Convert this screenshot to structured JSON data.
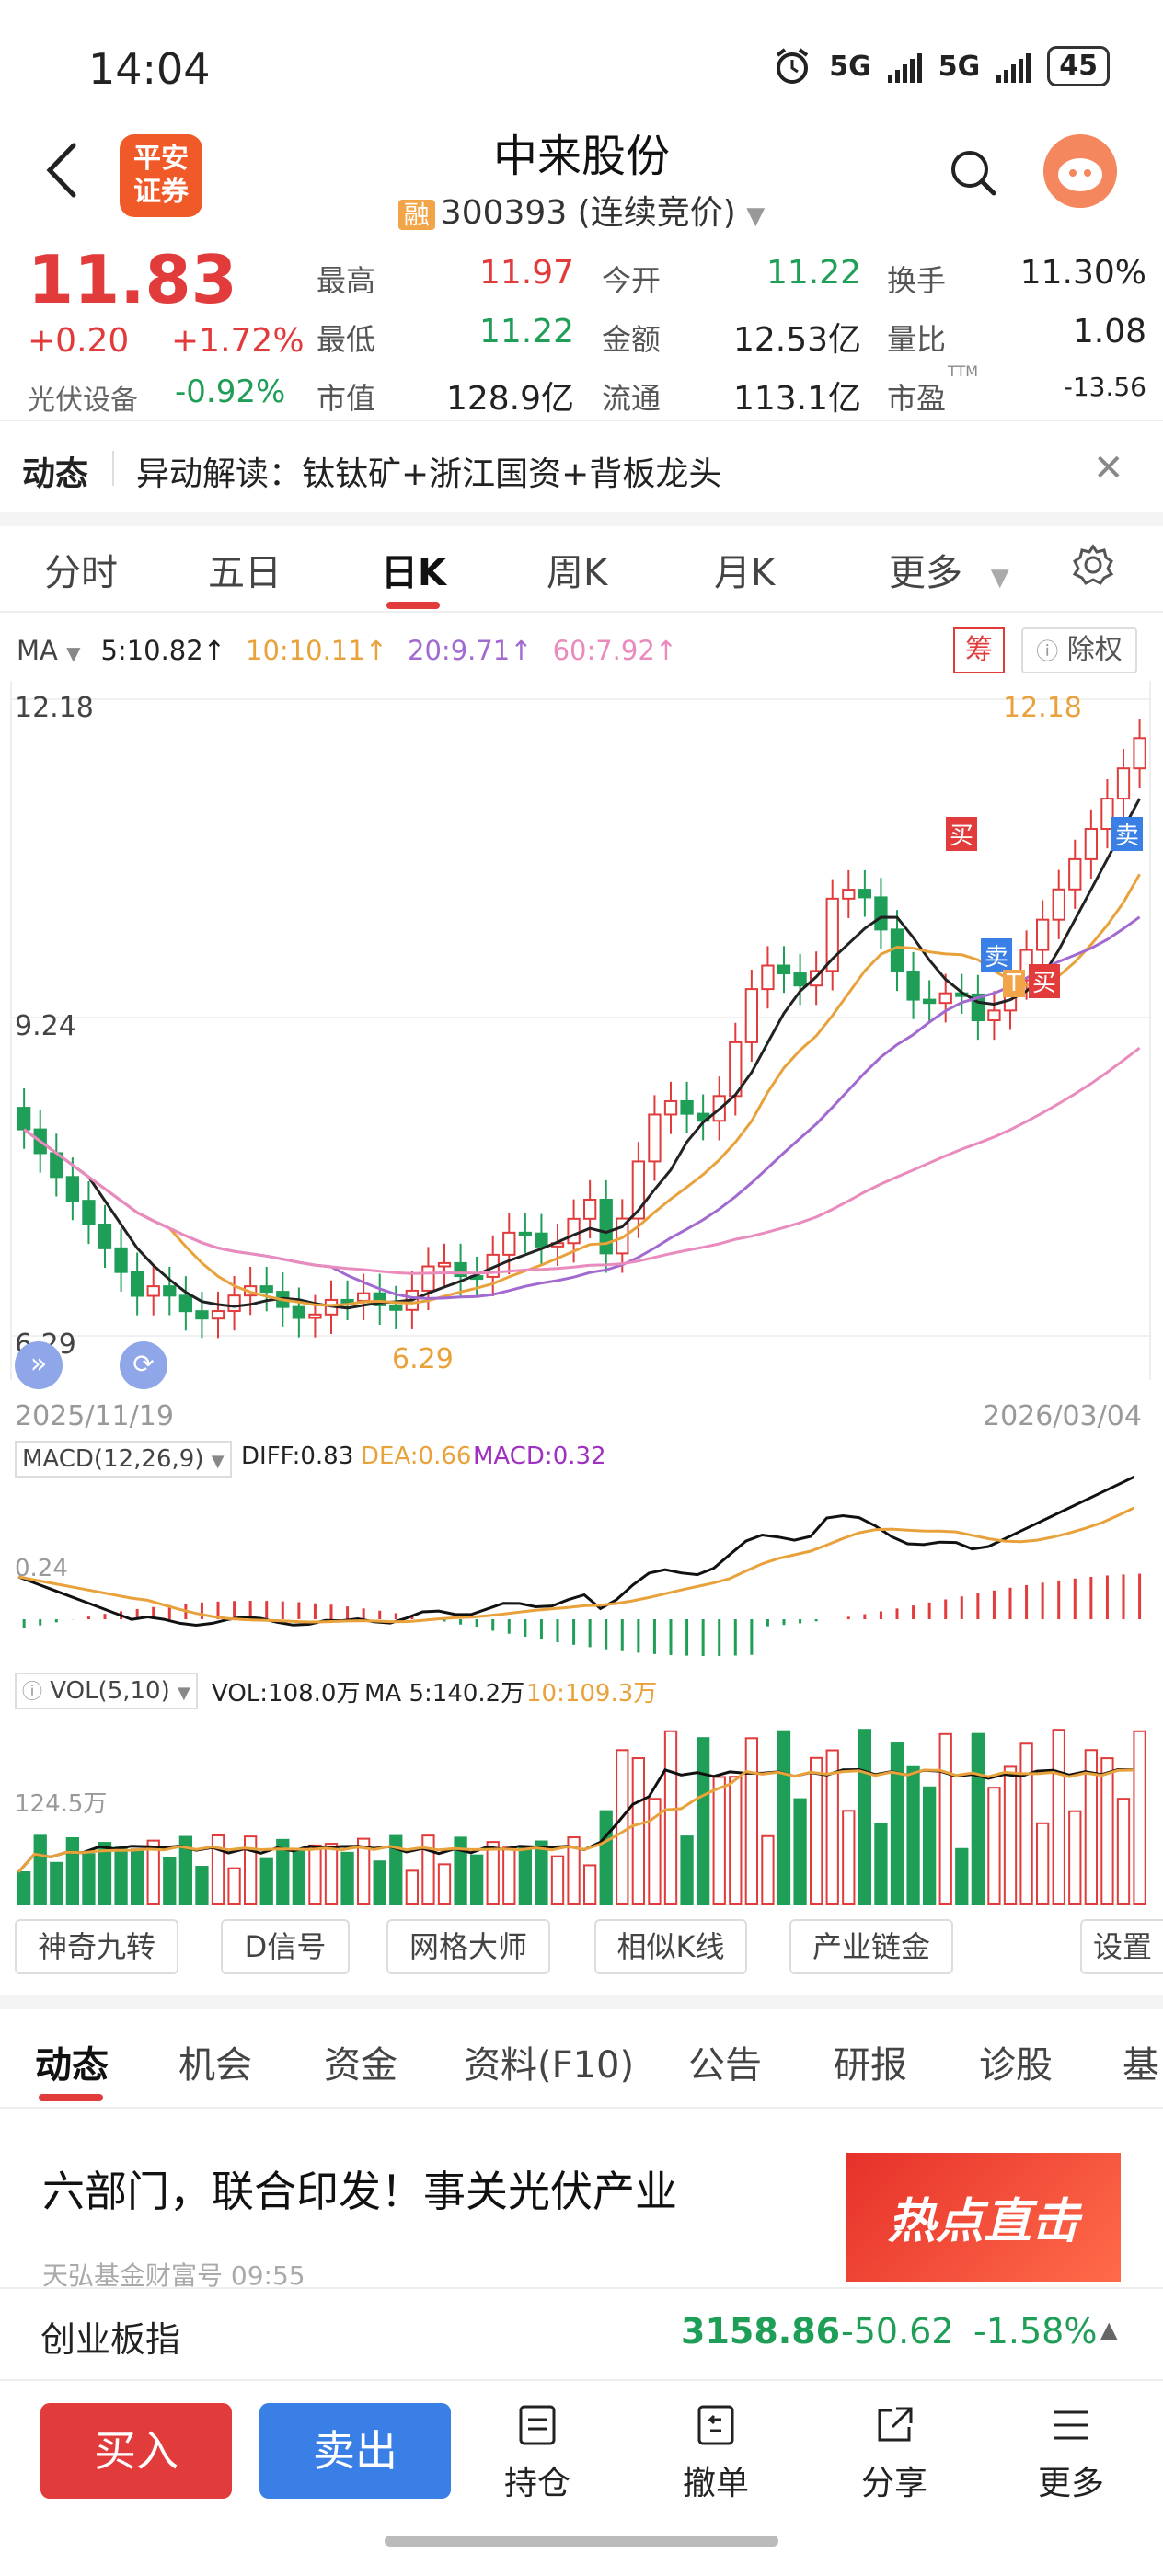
{
  "status_bar": {
    "time": "14:04",
    "network1": "5G",
    "network2": "5G",
    "battery": "45"
  },
  "header": {
    "logo_line1": "平安",
    "logo_line2": "证券",
    "stock_name": "中来股份",
    "margin_tag": "融",
    "code_status": "300393 (连续竞价)"
  },
  "quote": {
    "price": "11.83",
    "change": "+0.20",
    "change_pct": "+1.72%",
    "sector": "光伏设备",
    "sector_chg": "-0.92%",
    "fields": [
      {
        "label": "最高",
        "value": "11.97",
        "color": "#e13b3b"
      },
      {
        "label": "今开",
        "value": "11.22",
        "color": "#1f9e57"
      },
      {
        "label": "换手",
        "value": "11.30%",
        "color": "#222222"
      },
      {
        "label": "最低",
        "value": "11.22",
        "color": "#1f9e57"
      },
      {
        "label": "金额",
        "value": "12.53亿",
        "color": "#222222"
      },
      {
        "label": "量比",
        "value": "1.08",
        "color": "#222222"
      },
      {
        "label": "市值",
        "value": "128.9亿",
        "color": "#222222"
      },
      {
        "label": "流通",
        "value": "113.1亿",
        "color": "#222222"
      },
      {
        "label": "市盈",
        "value": "-13.56",
        "color": "#222222"
      }
    ],
    "pe_sup": "TTM"
  },
  "news_strip": {
    "tag": "动态",
    "text": "异动解读：钛钛矿+浙江国资+背板龙头"
  },
  "period_tabs": [
    "分时",
    "五日",
    "日K",
    "周K",
    "月K",
    "更多"
  ],
  "ma_legend": {
    "label": "MA",
    "ma5": "5:10.82↑",
    "ma10": "10:10.11↑",
    "ma20": "20:9.71↑",
    "ma60": "60:7.92↑",
    "chip_chou": "筹",
    "chip_chuquan": "除权"
  },
  "kline": {
    "y_high": "12.18",
    "y_mid": "9.24",
    "y_low": "6.29",
    "high_mark": "12.18",
    "low_mark": "6.29",
    "date_start": "2025/11/19",
    "date_end": "2026/03/04",
    "signal_buy": "买",
    "signal_sell": "卖",
    "signal_t": "T"
  },
  "macd": {
    "label": "MACD(12,26,9)",
    "diff": "DIFF:0.83",
    "dea": "DEA:0.66",
    "macd": "MACD:0.32",
    "axis": "0.24"
  },
  "vol": {
    "label": "VOL(5,10)",
    "vol": "VOL:108.0万",
    "ma5": "MA 5:140.2万",
    "ma10": "10:109.3万",
    "axis": "124.5万"
  },
  "tools": [
    "神奇九转",
    "D信号",
    "网格大师",
    "相似K线",
    "产业链金",
    "设置"
  ],
  "bottom_tabs": [
    "动态",
    "机会",
    "资金",
    "资料(F10)",
    "公告",
    "研报",
    "诊股",
    "基"
  ],
  "article": {
    "title": "六部门，联合印发！事关光伏产业",
    "source": "天弘基金财富号   09:55",
    "banner": "热点直击"
  },
  "index_bar": {
    "name": "创业板指",
    "value": "3158.86",
    "change": "-50.62",
    "change_pct": "-1.58%"
  },
  "actions": {
    "buy": "买入",
    "sell": "卖出",
    "hold": "持仓",
    "cancel": "撤单",
    "share": "分享",
    "more": "更多"
  },
  "colors": {
    "up": "#e13b3b",
    "down": "#1f9e57",
    "ma5": "#222222",
    "ma10": "#e9a23b",
    "ma20": "#a26ad0",
    "ma60": "#e98bbd",
    "accent": "#e13b3b"
  }
}
